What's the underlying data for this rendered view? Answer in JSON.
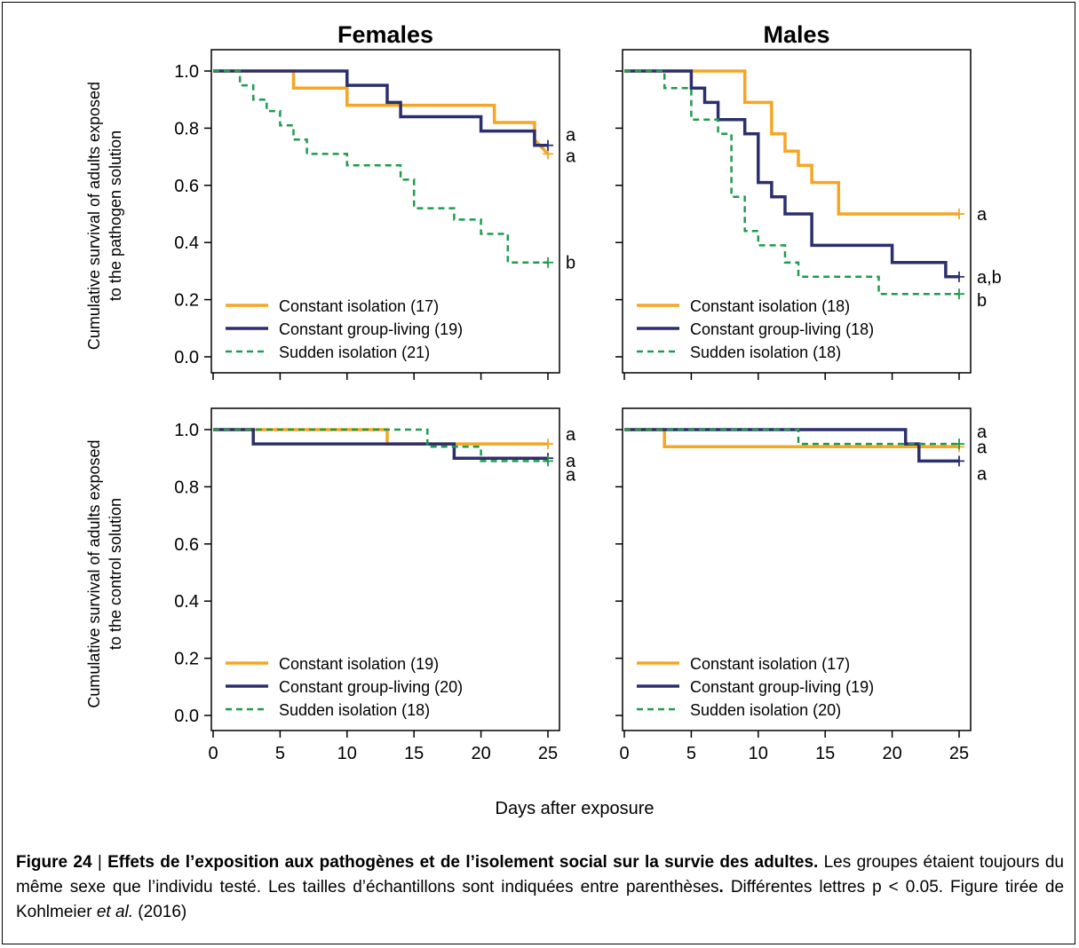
{
  "chart_data": [
    {
      "type": "line",
      "panel_title": "Females",
      "ylabel": "Cumulative survival of adults exposed to the pathogen solution",
      "xlabel": "",
      "xlim": [
        0,
        25
      ],
      "ylim": [
        0,
        1
      ],
      "xticks": [
        "0",
        "5",
        "10",
        "15",
        "20",
        "25"
      ],
      "yticks": [
        "0.0",
        "0.2",
        "0.4",
        "0.6",
        "0.8",
        "1.0"
      ],
      "show_xtick_labels": false,
      "series": [
        {
          "name": "Constant isolation (17)",
          "color": "#F5A623",
          "dash": false,
          "letter": "a",
          "x": [
            0,
            6,
            6,
            10,
            10,
            21,
            21,
            24,
            24,
            25
          ],
          "y": [
            1.0,
            1.0,
            0.94,
            0.94,
            0.88,
            0.88,
            0.82,
            0.82,
            0.76,
            0.71
          ]
        },
        {
          "name": "Constant group-living (19)",
          "color": "#2B2F6E",
          "dash": false,
          "letter": "a",
          "x": [
            0,
            10,
            10,
            13,
            13,
            14,
            14,
            20,
            20,
            24,
            24,
            25
          ],
          "y": [
            1.0,
            1.0,
            0.95,
            0.95,
            0.89,
            0.89,
            0.84,
            0.84,
            0.79,
            0.79,
            0.74,
            0.74
          ]
        },
        {
          "name": "Sudden isolation (21)",
          "color": "#1E9B4E",
          "dash": true,
          "letter": "b",
          "x": [
            0,
            2,
            2,
            3,
            3,
            4,
            4,
            5,
            5,
            6,
            6,
            7,
            7,
            10,
            10,
            14,
            14,
            15,
            15,
            18,
            18,
            20,
            20,
            22,
            22,
            25
          ],
          "y": [
            1.0,
            1.0,
            0.95,
            0.95,
            0.9,
            0.9,
            0.86,
            0.86,
            0.81,
            0.81,
            0.76,
            0.76,
            0.71,
            0.71,
            0.67,
            0.67,
            0.62,
            0.62,
            0.52,
            0.52,
            0.48,
            0.48,
            0.43,
            0.43,
            0.33,
            0.33
          ]
        }
      ]
    },
    {
      "type": "line",
      "panel_title": "Males",
      "ylabel": "",
      "xlabel": "",
      "xlim": [
        0,
        25
      ],
      "ylim": [
        0,
        1
      ],
      "xticks": [
        "0",
        "5",
        "10",
        "15",
        "20",
        "25"
      ],
      "yticks": [
        "0.0",
        "0.2",
        "0.4",
        "0.6",
        "0.8",
        "1.0"
      ],
      "show_xtick_labels": false,
      "series": [
        {
          "name": "Constant isolation (18)",
          "color": "#F5A623",
          "dash": false,
          "letter": "a",
          "x": [
            0,
            9,
            9,
            11,
            11,
            12,
            12,
            13,
            13,
            14,
            14,
            16,
            16,
            25
          ],
          "y": [
            1.0,
            1.0,
            0.89,
            0.89,
            0.78,
            0.78,
            0.72,
            0.72,
            0.67,
            0.67,
            0.61,
            0.61,
            0.5,
            0.5
          ]
        },
        {
          "name": "Constant group-living (18)",
          "color": "#2B2F6E",
          "dash": false,
          "letter": "a,b",
          "x": [
            0,
            5,
            5,
            6,
            6,
            7,
            7,
            9,
            9,
            10,
            10,
            11,
            11,
            12,
            12,
            14,
            14,
            20,
            20,
            24,
            24,
            25
          ],
          "y": [
            1.0,
            1.0,
            0.94,
            0.94,
            0.89,
            0.89,
            0.83,
            0.83,
            0.78,
            0.78,
            0.61,
            0.61,
            0.56,
            0.56,
            0.5,
            0.5,
            0.39,
            0.39,
            0.33,
            0.33,
            0.28,
            0.28
          ]
        },
        {
          "name": "Sudden isolation (18)",
          "color": "#1E9B4E",
          "dash": true,
          "letter": "b",
          "x": [
            0,
            3,
            3,
            5,
            5,
            7,
            7,
            8,
            8,
            9,
            9,
            10,
            10,
            12,
            12,
            13,
            13,
            19,
            19,
            25
          ],
          "y": [
            1.0,
            1.0,
            0.94,
            0.94,
            0.83,
            0.83,
            0.78,
            0.78,
            0.56,
            0.56,
            0.44,
            0.44,
            0.39,
            0.39,
            0.33,
            0.33,
            0.28,
            0.28,
            0.22,
            0.22
          ]
        }
      ]
    },
    {
      "type": "line",
      "panel_title": "",
      "ylabel": "Cumulative survival of adults exposed to the control solution",
      "xlabel": "",
      "xlim": [
        0,
        25
      ],
      "ylim": [
        0,
        1
      ],
      "xticks": [
        "0",
        "5",
        "10",
        "15",
        "20",
        "25"
      ],
      "yticks": [
        "0.0",
        "0.2",
        "0.4",
        "0.6",
        "0.8",
        "1.0"
      ],
      "show_xtick_labels": true,
      "series": [
        {
          "name": "Constant isolation (19)",
          "color": "#F5A623",
          "dash": false,
          "letter": "a",
          "x": [
            0,
            13,
            13,
            18,
            18,
            25
          ],
          "y": [
            1.0,
            1.0,
            0.95,
            0.95,
            0.95,
            0.95
          ]
        },
        {
          "name": "Constant group-living (20)",
          "color": "#2B2F6E",
          "dash": false,
          "letter": "a",
          "x": [
            0,
            3,
            3,
            18,
            18,
            25
          ],
          "y": [
            1.0,
            1.0,
            0.95,
            0.95,
            0.9,
            0.9
          ]
        },
        {
          "name": "Sudden isolation (18)",
          "color": "#1E9B4E",
          "dash": true,
          "letter": "a",
          "x": [
            0,
            16,
            16,
            20,
            20,
            25
          ],
          "y": [
            1.0,
            1.0,
            0.94,
            0.94,
            0.89,
            0.89
          ]
        }
      ]
    },
    {
      "type": "line",
      "panel_title": "",
      "ylabel": "",
      "xlabel": "",
      "xlim": [
        0,
        25
      ],
      "ylim": [
        0,
        1
      ],
      "xticks": [
        "0",
        "5",
        "10",
        "15",
        "20",
        "25"
      ],
      "yticks": [
        "0.0",
        "0.2",
        "0.4",
        "0.6",
        "0.8",
        "1.0"
      ],
      "show_xtick_labels": true,
      "series": [
        {
          "name": "Constant isolation (17)",
          "color": "#F5A623",
          "dash": false,
          "letter": "a",
          "x": [
            0,
            3,
            3,
            25
          ],
          "y": [
            1.0,
            1.0,
            0.94,
            0.94
          ]
        },
        {
          "name": "Constant group-living (19)",
          "color": "#2B2F6E",
          "dash": false,
          "letter": "a",
          "x": [
            0,
            21,
            21,
            22,
            22,
            25
          ],
          "y": [
            1.0,
            1.0,
            0.95,
            0.95,
            0.89,
            0.89
          ]
        },
        {
          "name": "Sudden isolation (20)",
          "color": "#1E9B4E",
          "dash": true,
          "letter": "a",
          "x": [
            0,
            13,
            13,
            25
          ],
          "y": [
            1.0,
            1.0,
            0.95,
            0.95
          ]
        }
      ]
    }
  ],
  "shared_xlabel": "Days after exposure",
  "caption": {
    "label": "Figure 24",
    "separator": " | ",
    "title": "Effets de l’exposition aux pathogènes et de l’isolement social sur la survie des adultes.",
    "body_1": " Les groupes étaient toujours du même sexe que l’individu testé. Les tailles d’échantillons sont indiquées entre parenthèses",
    "period_bold": ".",
    "body_2": " Différentes lettres p < 0.05. Figure tirée de Kohlmeier ",
    "etal": "et al.",
    "body_3": " (2016)"
  }
}
